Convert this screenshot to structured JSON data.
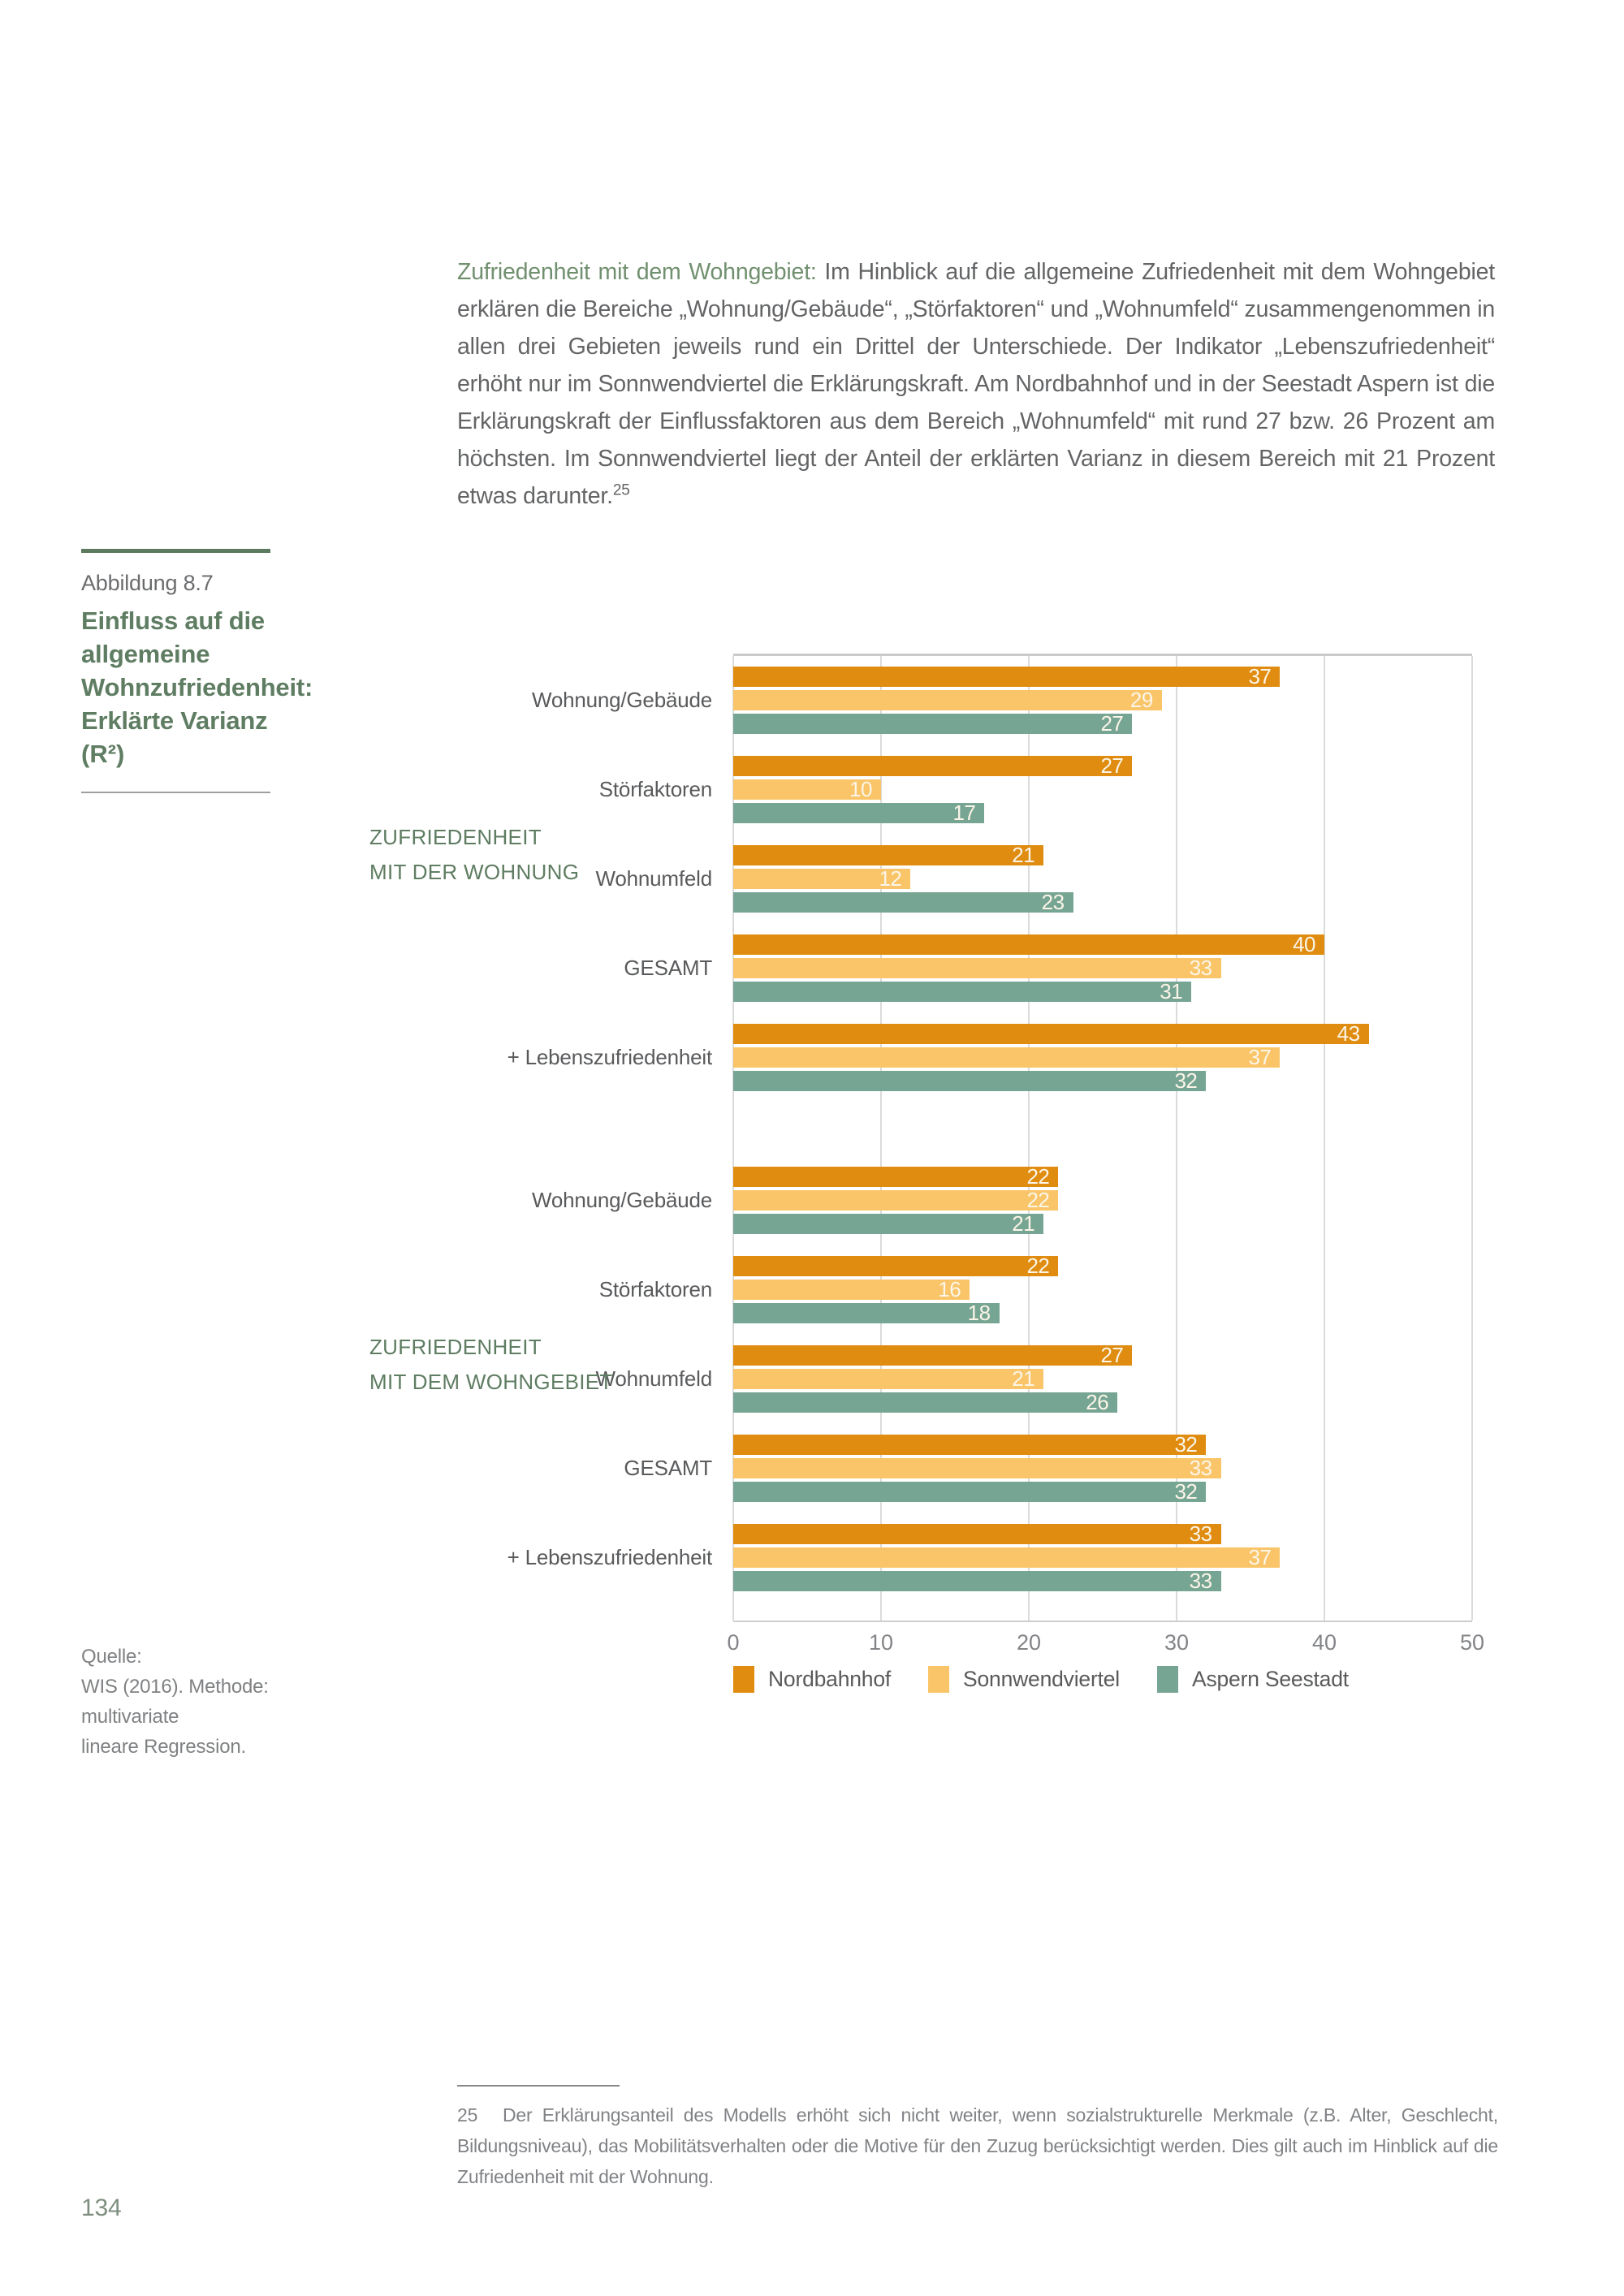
{
  "intro": {
    "highlight": "Zufriedenheit mit dem Wohngebiet:",
    "body": " Im Hinblick auf die allgemeine Zufriedenheit mit dem Wohngebiet erklären die Bereiche „Wohnung/Gebäude“, „Störfaktoren“ und „Wohnumfeld“ zusammengenommen in allen drei Gebieten jeweils rund ein Drittel der Unterschiede. Der Indikator „Lebenszufriedenheit“ erhöht nur im Sonnwendviertel die Erklärungskraft. Am Nordbahnhof und in der Seestadt Aspern ist die Erklärungskraft der Einflussfaktoren aus dem Bereich „Wohnumfeld“ mit rund 27 bzw. 26 Prozent am höchsten. Im Sonnwendviertel liegt der Anteil der erklärten Varianz in diesem Bereich mit 21 Prozent etwas darunter.",
    "footnote_marker": "25"
  },
  "figure": {
    "label": "Abbildung 8.7",
    "title_lines": [
      "Einfluss auf die allgemeine",
      "Wohnzufriedenheit:",
      "Erklärte Varianz"
    ],
    "r2": "(R²)"
  },
  "chart_data": {
    "type": "bar",
    "orientation": "horizontal",
    "x_axis": {
      "ticks": [
        0,
        10,
        20,
        30,
        40,
        50
      ],
      "max": 50,
      "grid": true
    },
    "series_names": [
      "Nordbahnhof",
      "Sonnwendviertel",
      "Aspern Seestadt"
    ],
    "series_colors": [
      "#DF8C10",
      "#FAC569",
      "#77A593"
    ],
    "value_label_color": "#FBF5E8",
    "groups": [
      {
        "label_lines": [
          "ZUFRIEDENHEIT",
          "MIT DER WOHNUNG"
        ],
        "categories": [
          "Wohnung/Gebäude",
          "Störfaktoren",
          "Wohnumfeld",
          "GESAMT",
          "+ Lebenszufriedenheit"
        ],
        "series": [
          {
            "name": "Nordbahnhof",
            "values": [
              37,
              27,
              21,
              40,
              43
            ]
          },
          {
            "name": "Sonnwendviertel",
            "values": [
              29,
              10,
              12,
              33,
              37
            ]
          },
          {
            "name": "Aspern Seestadt",
            "values": [
              27,
              17,
              23,
              31,
              32
            ]
          }
        ]
      },
      {
        "label_lines": [
          "ZUFRIEDENHEIT",
          "MIT DEM WOHNGEBIET"
        ],
        "categories": [
          "Wohnung/Gebäude",
          "Störfaktoren",
          "Wohnumfeld",
          "GESAMT",
          "+ Lebenszufriedenheit"
        ],
        "series": [
          {
            "name": "Nordbahnhof",
            "values": [
              22,
              22,
              27,
              32,
              33
            ]
          },
          {
            "name": "Sonnwendviertel",
            "values": [
              22,
              16,
              21,
              33,
              37
            ]
          },
          {
            "name": "Aspern Seestadt",
            "values": [
              21,
              18,
              26,
              32,
              33
            ]
          }
        ]
      }
    ],
    "legend": [
      "Nordbahnhof",
      "Sonnwendviertel",
      "Aspern Seestadt"
    ],
    "legend_position": "bottom"
  },
  "source": {
    "lines": [
      "Quelle:",
      "WIS (2016). Methode: multivariate",
      "lineare Regression."
    ]
  },
  "footnote": {
    "number": "25",
    "text": "Der Erklärungsanteil des Modells erhöht sich nicht weiter, wenn sozialstrukturelle Merkmale (z.B. Alter, Geschlecht, Bildungsniveau), das Mobilitätsverhalten oder die Motive für den Zuzug berücksichtigt werden. Dies gilt auch im Hinblick auf die Zufriedenheit mit der Wohnung."
  },
  "page": {
    "number": "134"
  }
}
